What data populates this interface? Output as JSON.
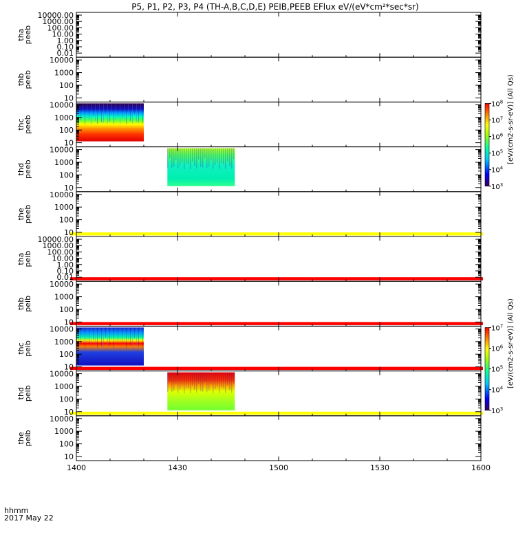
{
  "chart_data": {
    "type": "heatmap",
    "title": "P5, P1, P2, P3, P4 (TH-A,B,C,D,E) PEIB,PEEB EFlux eV/(eV*cm²*sec*sr)",
    "x_axis": {
      "range": [
        "1400",
        "1600"
      ],
      "tick_labels": [
        "1400",
        "1430",
        "1500",
        "1530",
        "1600"
      ],
      "label_line1": "hhmm",
      "label_line2": "2017 May 22"
    },
    "panels": [
      {
        "probe": "tha",
        "product": "peeb",
        "scale": "log",
        "yticks": [
          "10000.00",
          "1000.00",
          "100.00",
          "10.00",
          "1.00",
          "0.10",
          "0.01"
        ],
        "spectrogram": null,
        "flag_bar": null
      },
      {
        "probe": "thb",
        "product": "peeb",
        "scale": "log",
        "yticks": [
          "10000",
          "1000",
          "100",
          "10"
        ],
        "spectrogram": null,
        "flag_bar": null
      },
      {
        "probe": "thc",
        "product": "peeb",
        "scale": "log",
        "yticks": [
          "10000",
          "1000",
          "100",
          "10"
        ],
        "spectrogram": {
          "x_start": "1400",
          "x_end": "1420",
          "style": "peeb-c"
        },
        "flag_bar": null
      },
      {
        "probe": "thd",
        "product": "peeb",
        "scale": "log",
        "yticks": [
          "10000",
          "1000",
          "100",
          "10"
        ],
        "spectrogram": {
          "x_start": "1427",
          "x_end": "1447",
          "style": "peeb-d"
        },
        "flag_bar": null
      },
      {
        "probe": "the",
        "product": "peeb",
        "scale": "log",
        "yticks": [
          "10000",
          "1000",
          "100",
          "10"
        ],
        "spectrogram": null,
        "flag_bar": "#ffff00"
      },
      {
        "probe": "tha",
        "product": "peib",
        "scale": "log",
        "yticks": [
          "10000.00",
          "1000.00",
          "100.00",
          "10.00",
          "1.00",
          "0.10",
          "0.01"
        ],
        "spectrogram": null,
        "flag_bar": "#ff0000"
      },
      {
        "probe": "thb",
        "product": "peib",
        "scale": "log",
        "yticks": [
          "10000",
          "1000",
          "100",
          "10"
        ],
        "spectrogram": null,
        "flag_bar": "#ff0000"
      },
      {
        "probe": "thc",
        "product": "peib",
        "scale": "log",
        "yticks": [
          "10000",
          "1000",
          "100",
          "10"
        ],
        "spectrogram": {
          "x_start": "1400",
          "x_end": "1420",
          "style": "peib-c"
        },
        "flag_bar": "#ff0000"
      },
      {
        "probe": "thd",
        "product": "peib",
        "scale": "log",
        "yticks": [
          "10000",
          "1000",
          "100",
          "10"
        ],
        "spectrogram": {
          "x_start": "1427",
          "x_end": "1447",
          "style": "peib-d"
        },
        "flag_bar": "#ffff00"
      },
      {
        "probe": "the",
        "product": "peib",
        "scale": "log",
        "yticks": [
          "10000",
          "1000",
          "100",
          "10"
        ],
        "spectrogram": null,
        "flag_bar": null
      }
    ],
    "colorbars": [
      {
        "title": "[eV/(cm2-s-sr-eV)] (All Qs)",
        "exponents": [
          "8",
          "7",
          "6",
          "5",
          "4",
          "3"
        ],
        "attached_panels": [
          2,
          3
        ]
      },
      {
        "title": "[eV/(cm2-s-sr-eV)] (All Qs)",
        "exponents": [
          "7",
          "6",
          "5",
          "4",
          "3"
        ],
        "attached_panels": [
          7,
          8
        ]
      }
    ],
    "colorscale": [
      "#4b0082",
      "#0000ff",
      "#00c8ff",
      "#00ffa0",
      "#7fff00",
      "#ffff00",
      "#ff8000",
      "#ff0000"
    ],
    "grid": false
  }
}
